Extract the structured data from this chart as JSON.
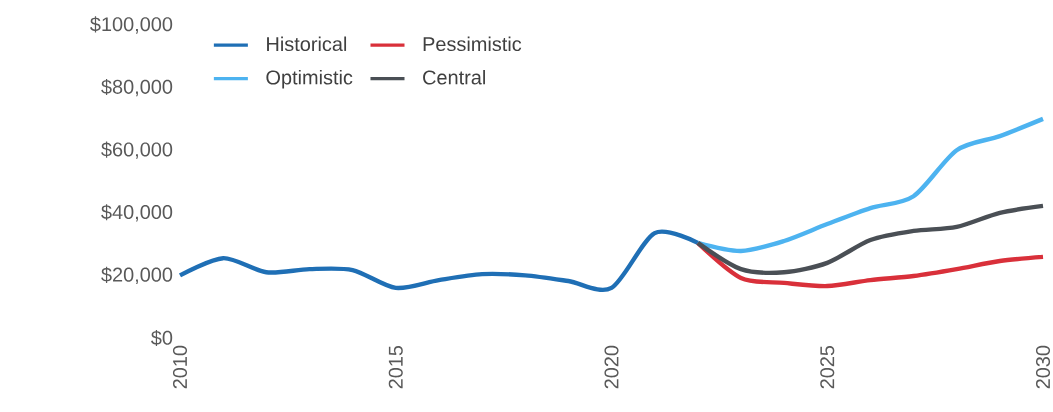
{
  "chart_data": {
    "type": "line",
    "x": [
      2010,
      2011,
      2012,
      2013,
      2014,
      2015,
      2016,
      2017,
      2018,
      2019,
      2020,
      2021,
      2022
    ],
    "series": [
      {
        "name": "Historical",
        "color": "#1f6fb5",
        "values": [
          20000,
          25500,
          21000,
          22000,
          21700,
          16000,
          18500,
          20400,
          20000,
          18200,
          16000,
          33500,
          30400
        ]
      },
      {
        "name": "Pessimistic",
        "color": "#d9303a",
        "x": [
          2022,
          2023,
          2024,
          2025,
          2026,
          2027,
          2028,
          2029,
          2030
        ],
        "values": [
          30400,
          19200,
          17600,
          16600,
          18500,
          19800,
          22000,
          24600,
          25900
        ]
      },
      {
        "name": "Optimistic",
        "color": "#4db3f0",
        "x": [
          2022,
          2023,
          2024,
          2025,
          2026,
          2027,
          2028,
          2029,
          2030
        ],
        "values": [
          30400,
          27800,
          31000,
          36400,
          41500,
          45300,
          60000,
          64500,
          70000
        ]
      },
      {
        "name": "Central",
        "color": "#4a4f55",
        "x": [
          2022,
          2023,
          2024,
          2025,
          2026,
          2027,
          2028,
          2029,
          2030
        ],
        "values": [
          30400,
          22000,
          21000,
          24000,
          31300,
          34200,
          35500,
          40000,
          42200
        ]
      }
    ],
    "xlim": [
      2010,
      2030
    ],
    "xticks": [
      2010,
      2015,
      2020,
      2025,
      2030
    ],
    "ylim": [
      0,
      100000
    ],
    "yticks": [
      {
        "value": 0,
        "label": "$0"
      },
      {
        "value": 20000,
        "label": "$20,000"
      },
      {
        "value": 40000,
        "label": "$40,000"
      },
      {
        "value": 60000,
        "label": "$60,000"
      },
      {
        "value": 80000,
        "label": "$80,000"
      },
      {
        "value": 100000,
        "label": "$100,000"
      }
    ],
    "legend": "top left",
    "grid": false,
    "marker": "none",
    "line_style": "solid"
  }
}
